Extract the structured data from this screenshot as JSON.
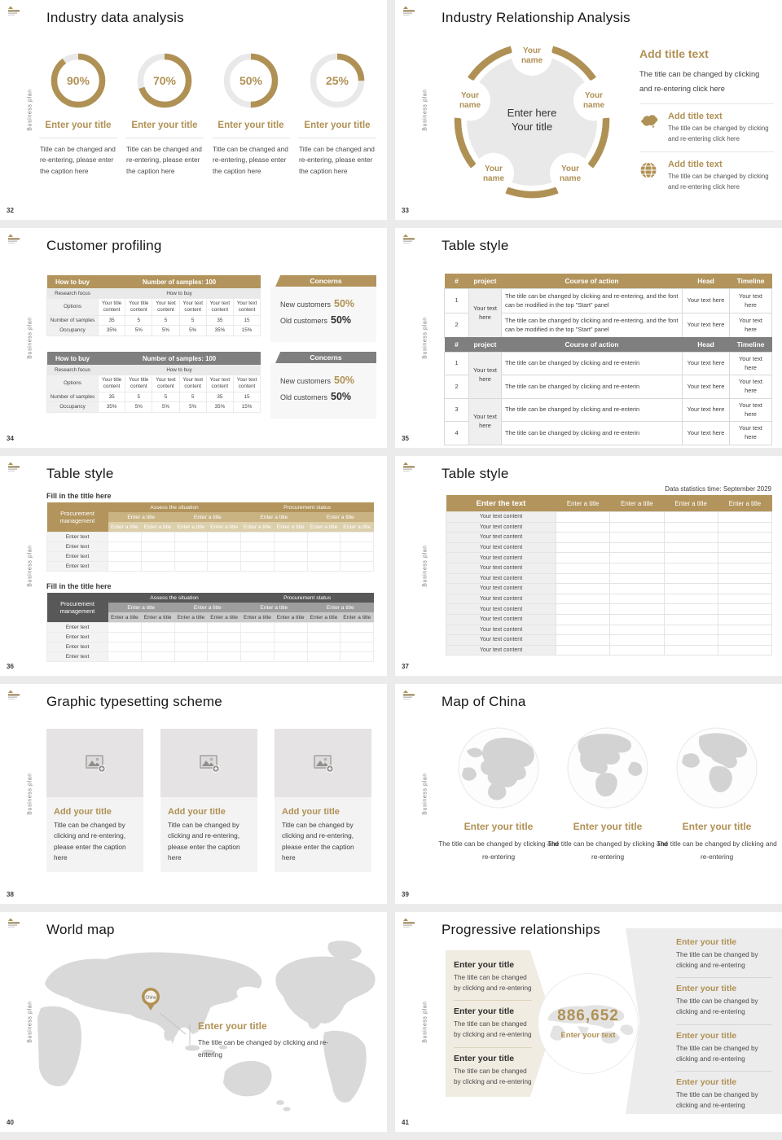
{
  "theme": {
    "gold": "#b09155",
    "table_gold": "#b2945c",
    "table_gray": "#7f7f7f",
    "dark_gray": "#585858",
    "light_fill": "#efefef"
  },
  "common": {
    "sidebar_text": "Business plan"
  },
  "chart_data": {
    "type": "pie",
    "title": "Industry data analysis donuts",
    "values": [
      90,
      70,
      50,
      25
    ],
    "labels": [
      "90%",
      "70%",
      "50%",
      "25%"
    ]
  },
  "slides": {
    "s32": {
      "page": "32",
      "title": "Industry data analysis",
      "donuts": [
        {
          "value": 90,
          "label": "90%"
        },
        {
          "value": 70,
          "label": "70%"
        },
        {
          "value": 50,
          "label": "50%"
        },
        {
          "value": 25,
          "label": "25%"
        }
      ],
      "item_title": "Enter your title",
      "caption": "Title can be changed and re-entering, please enter the caption here"
    },
    "s33": {
      "page": "33",
      "title": "Industry Relationship Analysis",
      "node_label": "Your name",
      "center_line1": "Enter here",
      "center_line2": "Your title",
      "right_heading": "Add title text",
      "right_para": "The title can be changed by clicking and re-entering click here",
      "sub_heading": "Add title text",
      "sub_para": "The title can be changed by clicking and re-entering click here"
    },
    "s34": {
      "page": "34",
      "title": "Customer profiling",
      "table": {
        "corner": "How to buy",
        "samples": "Number of samples: 100",
        "focus_label": "Research focus",
        "focus_value": "How to buy",
        "options_label": "Options",
        "options": [
          "Your title content",
          "Your title content",
          "Your text content",
          "Your text content",
          "Your text content",
          "Your text content"
        ],
        "num_label": "Number of samples",
        "nums": [
          "35",
          "5",
          "5",
          "5",
          "35",
          "15"
        ],
        "occ_label": "Occupancy",
        "occs": [
          "35%",
          "5%",
          "5%",
          "5%",
          "35%",
          "15%"
        ]
      },
      "concerns": {
        "header": "Concerns",
        "new_label": "New customers",
        "new_value": "50%",
        "old_label": "Old customers",
        "old_value": "50%"
      }
    },
    "s35": {
      "page": "35",
      "title": "Table style",
      "columns": [
        "#",
        "project",
        "Course of action",
        "Head",
        "Timeline"
      ],
      "t1": {
        "r1": "1",
        "r2": "2",
        "project": "Your text here",
        "action": "The title can be changed by clicking and re-entering, and the font can be modified in the top \"Start\" panel",
        "cell": "Your text here"
      },
      "t2": {
        "r1": "1",
        "r2": "2",
        "r3": "3",
        "r4": "4",
        "project": "Your text here",
        "action": "The title can be changed by clicking and re-enterin",
        "cell": "Your text here"
      }
    },
    "s36": {
      "page": "36",
      "title": "Table style",
      "section_label": "Fill in the title here",
      "corner": "Procurement management",
      "group1": "Assess the situation",
      "group2": "Procurement status",
      "sub_title": "Enter a title",
      "row_label": "Enter text"
    },
    "s37": {
      "page": "37",
      "title": "Table style",
      "note": "Data statistics time: September 2029",
      "header_main": "Enter the text",
      "header_col": "Enter a title",
      "row_text": "Your text content",
      "row_count": 14
    },
    "s38": {
      "page": "38",
      "title": "Graphic typesetting scheme",
      "card_heading": "Add your title",
      "card_caption": "Title can be changed by clicking and re-entering, please enter the caption here"
    },
    "s39": {
      "page": "39",
      "title": "Map of China",
      "item_heading": "Enter your title",
      "item_caption": "The title can be changed by clicking and re-entering"
    },
    "s40": {
      "page": "40",
      "title": "World map",
      "marker": "China",
      "callout_heading": "Enter your title",
      "callout_caption": "The title can be changed by clicking and re-entering"
    },
    "s41": {
      "page": "41",
      "title": "Progressive relationships",
      "item_heading": "Enter your title",
      "item_caption": "The title can be changed by clicking and re-entering",
      "center_number": "886,652",
      "center_label": "Enter your text"
    }
  }
}
